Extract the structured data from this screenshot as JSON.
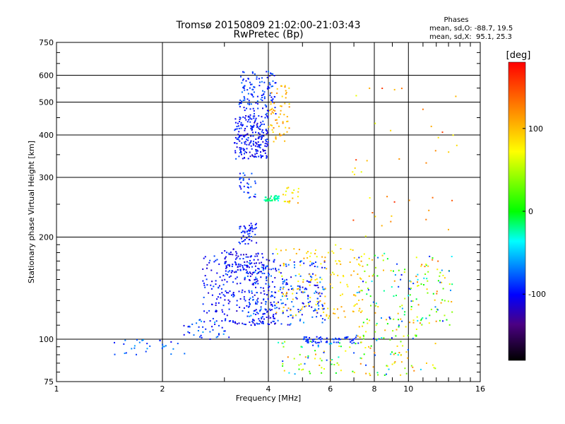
{
  "chart_data": {
    "type": "scatter",
    "title_line1": "Tromsø 20150809 21:02:00-21:03:43",
    "title_line2": "RwPretec (Bp)",
    "xlabel": "Frequency [MHz]",
    "ylabel": "Stationary phase Virtual Height [km]",
    "x_scale": "log",
    "y_scale": "log",
    "xlim": [
      1,
      16
    ],
    "ylim": [
      75,
      750
    ],
    "x_ticks": [
      1,
      2,
      4,
      6,
      8,
      10,
      16
    ],
    "x_tick_labels": [
      "1",
      "2",
      "4",
      "6",
      "8",
      "10",
      "16"
    ],
    "y_ticks": [
      75,
      100,
      200,
      300,
      400,
      500,
      600,
      750
    ],
    "y_tick_labels": [
      "75",
      "100",
      "200",
      "300",
      "400",
      "500",
      "600",
      "750"
    ],
    "grid": true,
    "stats": {
      "heading": "Phases",
      "line_o": "mean, sd,O: -88.7, 19.5",
      "line_x": "mean, sd,X:  95.1, 25.3"
    },
    "colorbar": {
      "label": "[deg]",
      "min": -180,
      "max": 180,
      "ticks": [
        100,
        0,
        -100
      ],
      "tick_labels": [
        "100",
        "0",
        "-100"
      ],
      "palette": [
        "#000000",
        "#4b0082",
        "#0000ff",
        "#00ffff",
        "#00ff00",
        "#ffff00",
        "#ff8000",
        "#ff0000"
      ]
    },
    "clusters": [
      {
        "name": "low-ramp",
        "x": [
          1.45,
          2.35
        ],
        "y": [
          90,
          100
        ],
        "n": 30,
        "phase": [
          -110,
          -60
        ]
      },
      {
        "name": "ramp",
        "x": [
          2.3,
          3.1
        ],
        "y": [
          100,
          115
        ],
        "n": 40,
        "phase": [
          -110,
          -60
        ]
      },
      {
        "name": "E-trace",
        "x": [
          2.6,
          4.2
        ],
        "y": [
          110,
          180
        ],
        "n": 250,
        "phase": [
          -120,
          -80
        ]
      },
      {
        "name": "trace-175",
        "x": [
          3.0,
          3.5
        ],
        "y": [
          150,
          185
        ],
        "n": 60,
        "phase": [
          -120,
          -80
        ]
      },
      {
        "name": "Es-200",
        "x": [
          3.3,
          3.7
        ],
        "y": [
          190,
          220
        ],
        "n": 50,
        "phase": [
          -110,
          -80
        ]
      },
      {
        "name": "mid-120",
        "x": [
          3.4,
          5.8
        ],
        "y": [
          110,
          170
        ],
        "n": 260,
        "phase": [
          -120,
          -60
        ]
      },
      {
        "name": "mid-mixed",
        "x": [
          4.2,
          7.5
        ],
        "y": [
          115,
          190
        ],
        "n": 140,
        "phase": [
          60,
          120
        ]
      },
      {
        "name": "right-mixed",
        "x": [
          7.0,
          11.0
        ],
        "y": [
          100,
          180
        ],
        "n": 130,
        "phase": [
          -100,
          120
        ]
      },
      {
        "name": "base-100",
        "x": [
          5.0,
          7.2
        ],
        "y": [
          97,
          102
        ],
        "n": 60,
        "phase": [
          -100,
          -80
        ]
      },
      {
        "name": "F-300",
        "x": [
          3.3,
          3.7
        ],
        "y": [
          260,
          310
        ],
        "n": 30,
        "phase": [
          -110,
          -70
        ]
      },
      {
        "name": "F-260",
        "x": [
          3.9,
          4.3
        ],
        "y": [
          255,
          265
        ],
        "n": 40,
        "phase": [
          -40,
          -10
        ]
      },
      {
        "name": "F-260b",
        "x": [
          4.4,
          4.9
        ],
        "y": [
          250,
          280
        ],
        "n": 20,
        "phase": [
          60,
          130
        ]
      },
      {
        "name": "F-O",
        "x": [
          3.2,
          4.0
        ],
        "y": [
          340,
          460
        ],
        "n": 220,
        "phase": [
          -120,
          -80
        ]
      },
      {
        "name": "F-O-upper",
        "x": [
          3.3,
          4.2
        ],
        "y": [
          460,
          620
        ],
        "n": 120,
        "phase": [
          -110,
          -70
        ]
      },
      {
        "name": "F-X",
        "x": [
          4.0,
          4.6
        ],
        "y": [
          380,
          560
        ],
        "n": 60,
        "phase": [
          80,
          130
        ]
      },
      {
        "name": "bottom-mixed",
        "x": [
          4.2,
          12.0
        ],
        "y": [
          78,
          100
        ],
        "n": 120,
        "phase": [
          -100,
          130
        ]
      },
      {
        "name": "sparse-high",
        "x": [
          6.5,
          14.0
        ],
        "y": [
          200,
          550
        ],
        "n": 40,
        "phase": [
          60,
          170
        ]
      },
      {
        "name": "far-right",
        "x": [
          10.5,
          13.5
        ],
        "y": [
          110,
          180
        ],
        "n": 70,
        "phase": [
          -100,
          140
        ]
      }
    ]
  }
}
